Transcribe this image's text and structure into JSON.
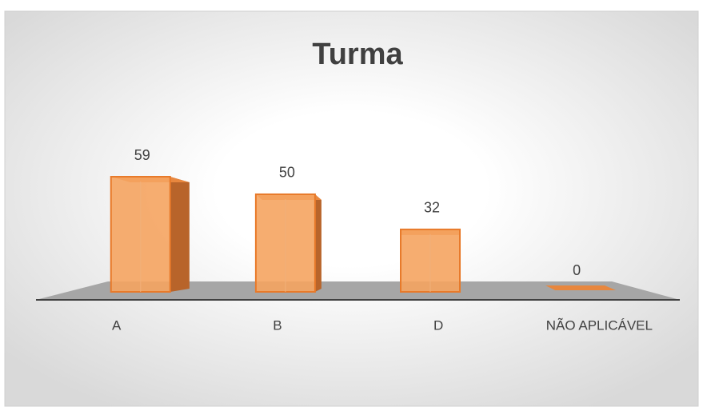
{
  "chart_data": {
    "type": "bar",
    "title": "Turma",
    "categories": [
      "A",
      "B",
      "D",
      "NÃO APLICÁVEL"
    ],
    "values": [
      59,
      50,
      32,
      0
    ],
    "color": "#f5a460"
  }
}
